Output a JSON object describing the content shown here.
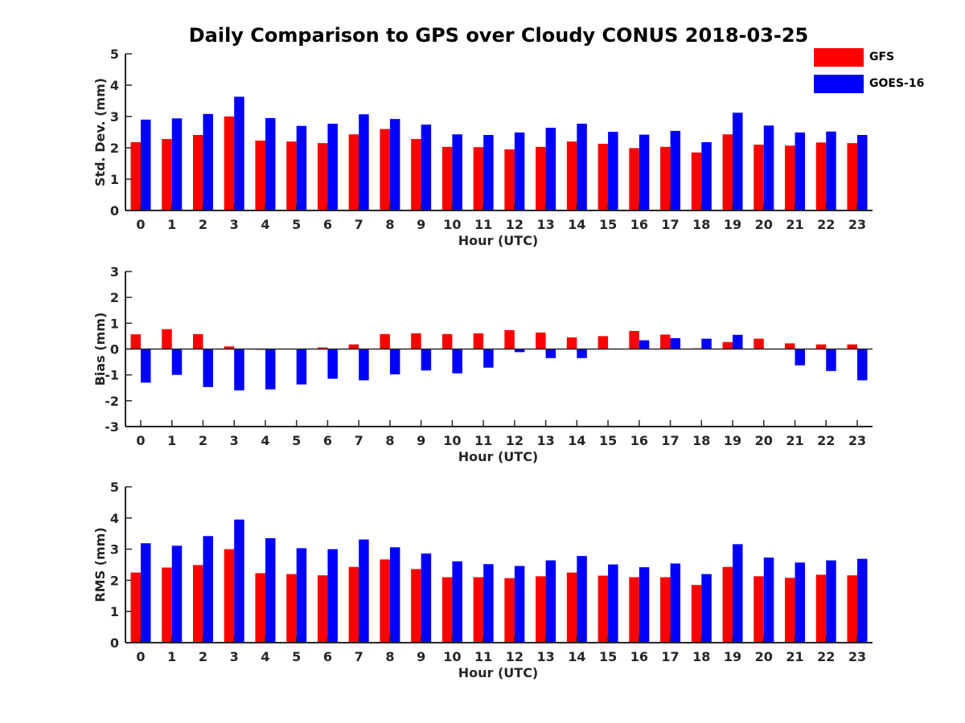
{
  "title": "Daily Comparison to GPS over Cloudy CONUS 2018-03-25",
  "colors": {
    "GFS": "#ff0000",
    "GOES-16": "#0000ff"
  },
  "legend": {
    "items": [
      {
        "label": "GFS"
      },
      {
        "label": "GOES-16"
      }
    ],
    "placement": "top-right (outside axes)"
  },
  "chart_data": [
    {
      "type": "bar",
      "xlabel": "Hour (UTC)",
      "ylabel": "Std. Dev. (mm)",
      "ylim": [
        0,
        5
      ],
      "yticks": [
        0,
        1,
        2,
        3,
        4,
        5
      ],
      "grid": false,
      "categories": [
        "0",
        "1",
        "2",
        "3",
        "4",
        "5",
        "6",
        "7",
        "8",
        "9",
        "10",
        "11",
        "12",
        "13",
        "14",
        "15",
        "16",
        "17",
        "18",
        "19",
        "20",
        "21",
        "22",
        "23"
      ],
      "series": [
        {
          "name": "GFS",
          "values": [
            2.18,
            2.28,
            2.41,
            3.0,
            2.23,
            2.2,
            2.15,
            2.43,
            2.6,
            2.28,
            2.03,
            2.02,
            1.95,
            2.03,
            2.2,
            2.13,
            1.99,
            2.03,
            1.85,
            2.43,
            2.1,
            2.07,
            2.17,
            2.15
          ]
        },
        {
          "name": "GOES-16",
          "values": [
            2.9,
            2.94,
            3.08,
            3.63,
            2.95,
            2.7,
            2.77,
            3.07,
            2.92,
            2.74,
            2.43,
            2.41,
            2.49,
            2.64,
            2.77,
            2.51,
            2.42,
            2.54,
            2.18,
            3.12,
            2.71,
            2.49,
            2.52,
            2.41
          ]
        }
      ]
    },
    {
      "type": "bar",
      "xlabel": "Hour (UTC)",
      "ylabel": "Bias (mm)",
      "ylim": [
        -3,
        3
      ],
      "yticks": [
        -3,
        -2,
        -1,
        0,
        1,
        2,
        3
      ],
      "grid": false,
      "categories": [
        "0",
        "1",
        "2",
        "3",
        "4",
        "5",
        "6",
        "7",
        "8",
        "9",
        "10",
        "11",
        "12",
        "13",
        "14",
        "15",
        "16",
        "17",
        "18",
        "19",
        "20",
        "21",
        "22",
        "23"
      ],
      "series": [
        {
          "name": "GFS",
          "values": [
            0.57,
            0.77,
            0.58,
            0.1,
            -0.03,
            0.0,
            0.06,
            0.18,
            0.58,
            0.61,
            0.58,
            0.61,
            0.73,
            0.64,
            0.45,
            0.5,
            0.7,
            0.56,
            0.03,
            0.27,
            0.4,
            0.22,
            0.18,
            0.18
          ]
        },
        {
          "name": "GOES-16",
          "values": [
            -1.3,
            -1.0,
            -1.47,
            -1.6,
            -1.56,
            -1.37,
            -1.15,
            -1.21,
            -0.98,
            -0.83,
            -0.94,
            -0.72,
            -0.12,
            -0.35,
            -0.35,
            0.0,
            0.34,
            0.42,
            0.4,
            0.55,
            0.0,
            -0.63,
            -0.85,
            -1.21
          ]
        }
      ]
    },
    {
      "type": "bar",
      "xlabel": "Hour (UTC)",
      "ylabel": "RMS (mm)",
      "ylim": [
        0,
        5
      ],
      "yticks": [
        0,
        1,
        2,
        3,
        4,
        5
      ],
      "grid": false,
      "categories": [
        "0",
        "1",
        "2",
        "3",
        "4",
        "5",
        "6",
        "7",
        "8",
        "9",
        "10",
        "11",
        "12",
        "13",
        "14",
        "15",
        "16",
        "17",
        "18",
        "19",
        "20",
        "21",
        "22",
        "23"
      ],
      "series": [
        {
          "name": "GFS",
          "values": [
            2.25,
            2.41,
            2.49,
            3.0,
            2.23,
            2.2,
            2.16,
            2.43,
            2.67,
            2.36,
            2.1,
            2.1,
            2.07,
            2.13,
            2.25,
            2.15,
            2.1,
            2.1,
            1.85,
            2.43,
            2.13,
            2.08,
            2.18,
            2.16
          ]
        },
        {
          "name": "GOES-16",
          "values": [
            3.19,
            3.11,
            3.42,
            3.95,
            3.35,
            3.03,
            3.0,
            3.31,
            3.06,
            2.86,
            2.61,
            2.52,
            2.46,
            2.64,
            2.78,
            2.51,
            2.42,
            2.54,
            2.2,
            3.16,
            2.73,
            2.57,
            2.64,
            2.69
          ]
        }
      ]
    }
  ]
}
